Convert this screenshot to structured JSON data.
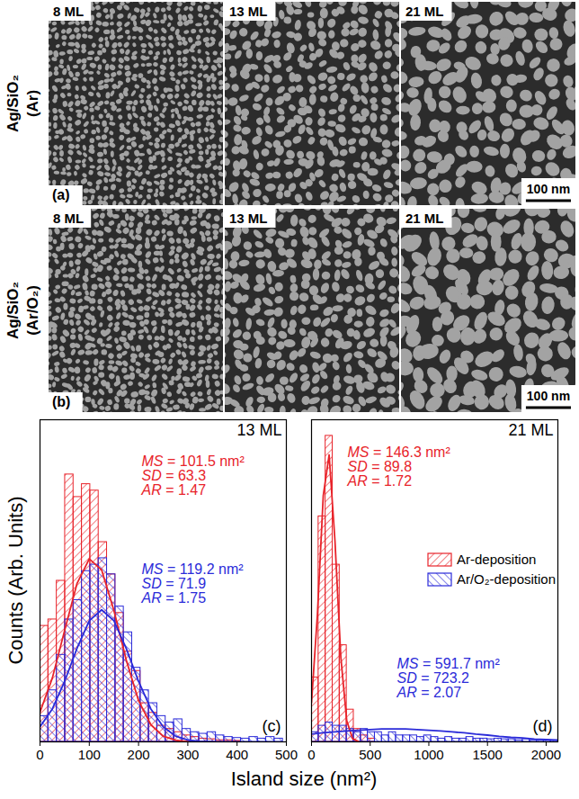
{
  "micrographs": {
    "rows": [
      {
        "label": [
          "Ag/SiO₂",
          "(Ar)"
        ],
        "panel_label": "(a)",
        "panels": [
          "8 ML",
          "13 ML",
          "21 ML"
        ]
      },
      {
        "label": [
          "Ag/SiO₂",
          "(Ar/O₂)"
        ],
        "panel_label": "(b)",
        "panels": [
          "8 ML",
          "13 ML",
          "21 ML"
        ]
      }
    ],
    "scale_bar": "100 nm"
  },
  "figure": {
    "xlabel": "Island size (nm²)",
    "ylabel": "Counts (Arb. Units)"
  },
  "chart_data": [
    {
      "type": "histogram",
      "title": "13 ML",
      "panel_label": "(c)",
      "xlim": [
        0,
        500
      ],
      "xticks": [
        0,
        100,
        200,
        300,
        400,
        500
      ],
      "ylim": [
        0,
        100
      ],
      "tick_labels": "x",
      "bins": [
        0,
        17,
        34,
        51,
        68,
        85,
        102,
        119,
        136,
        153,
        170,
        187,
        204,
        221,
        238,
        255,
        272,
        289,
        306,
        323,
        340,
        357,
        374,
        391,
        408,
        425,
        442,
        459,
        476,
        493
      ],
      "series": [
        {
          "name": "Ar-deposition",
          "color": "#e8232a",
          "values": [
            36,
            38,
            50,
            83,
            76,
            80,
            78,
            62,
            52,
            40,
            28,
            22,
            12,
            9,
            5,
            4,
            3,
            2,
            1.5,
            1,
            0.8,
            0.5,
            0.5,
            0.3,
            0,
            0,
            0,
            0,
            0
          ],
          "annotation": [
            "MS = 101.5 nm²",
            "SD = 63.3",
            "AR = 1.47"
          ],
          "fit": {
            "x": [
              0,
              25,
              50,
              75,
              100,
              125,
              150,
              175,
              200,
              225,
              250,
              275,
              300
            ],
            "values": [
              9.2,
              19.8,
              34.6,
              49.1,
              56.8,
              53.4,
              40.8,
              25.4,
              12.8,
              5.3,
              1.8,
              0.5,
              0.1
            ]
          }
        },
        {
          "name": "Ar/O₂-deposition",
          "color": "#2b2bd9",
          "values": [
            8,
            16,
            27,
            38,
            44,
            53,
            55,
            57,
            52,
            42,
            34,
            23,
            16,
            12,
            8,
            6,
            7,
            4,
            3,
            2.5,
            3,
            2,
            1.5,
            1.2,
            1,
            1.5,
            1,
            1.5,
            1
          ],
          "annotation": [
            "MS = 119.2 nm²",
            "SD = 71.9",
            "AR = 1.75"
          ],
          "fit": {
            "x": [
              0,
              25,
              50,
              75,
              100,
              125,
              150,
              175,
              200,
              225,
              250,
              275,
              300,
              325,
              350
            ],
            "values": [
              4.7,
              10.2,
              18.8,
              29,
              37.6,
              41,
              37.6,
              29,
              18.8,
              10.2,
              4.7,
              1.8,
              0.6,
              0.2,
              0.04
            ]
          }
        }
      ]
    },
    {
      "type": "histogram",
      "title": "21 ML",
      "panel_label": "(d)",
      "legend": "right",
      "xlim": [
        0,
        2100
      ],
      "xticks": [
        0,
        500,
        1000,
        1500,
        2000
      ],
      "ylim": [
        0,
        100
      ],
      "tick_labels": "x",
      "bins": [
        0,
        60,
        120,
        180,
        240,
        300,
        360,
        420,
        480,
        540,
        600,
        660,
        720,
        780,
        840,
        900,
        960,
        1020,
        1080,
        1140,
        1200,
        1260,
        1320,
        1380,
        1440,
        1500,
        1560,
        1620,
        1680,
        1740,
        1800,
        1860,
        1920,
        1980,
        2040,
        2100
      ],
      "series": [
        {
          "name": "Ar-deposition",
          "color": "#e8232a",
          "values": [
            20,
            70,
            95,
            55,
            30,
            10,
            4,
            2,
            1,
            0,
            0,
            0,
            0,
            0,
            0,
            0,
            0,
            0,
            0,
            0,
            0,
            0,
            0,
            0,
            0,
            0,
            0,
            0,
            0,
            0,
            0,
            0,
            0,
            0,
            0
          ],
          "annotation": [
            "MS = 146.3 nm²",
            "SD = 89.8",
            "AR = 1.72"
          ],
          "fit": {
            "x": [
              0,
              50,
              100,
              150,
              200,
              250,
              300,
              350,
              400
            ],
            "values": [
              12.2,
              39.4,
              76.4,
              89.1,
              62.3,
              26.2,
              6.6,
              1,
              0.1
            ]
          }
        },
        {
          "name": "Ar/O₂-deposition",
          "color": "#2b2bd9",
          "values": [
            3,
            5,
            6,
            5,
            5,
            4,
            3,
            4,
            3,
            3,
            2,
            3,
            2,
            2,
            2,
            1.5,
            2,
            1.5,
            1,
            1.5,
            1,
            1,
            1.5,
            1,
            1,
            0.8,
            1,
            0.8,
            0.8,
            0.5,
            0.8,
            0.5,
            0.5,
            0.5,
            0.5
          ],
          "annotation": [
            "MS = 591.7 nm²",
            "SD = 723.2",
            "AR = 2.07"
          ],
          "fit": {
            "x": [
              0,
              100,
              200,
              300,
              400,
              500,
              600,
              700,
              800,
              900,
              1000,
              1100,
              1200,
              1300,
              1400,
              1500,
              1600,
              1700,
              1800,
              1900,
              2000,
              2100
            ],
            "values": [
              2.4,
              2.8,
              3.1,
              3.4,
              3.6,
              3.8,
              4,
              4,
              4,
              3.8,
              3.6,
              3.4,
              3.1,
              2.8,
              2.4,
              2.1,
              1.7,
              1.4,
              1.2,
              0.9,
              0.7,
              0.5
            ]
          }
        }
      ]
    }
  ]
}
